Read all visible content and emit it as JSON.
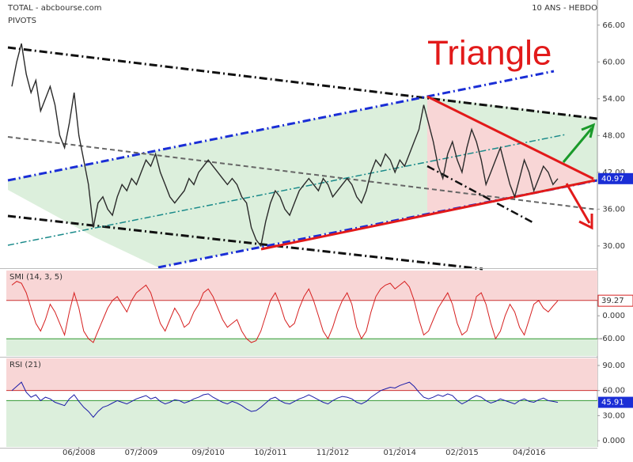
{
  "chart_data": [
    {
      "type": "line",
      "source": "TOTAL - abcbourse.com",
      "subtitle": "PIVOTS",
      "period": "10 ANS - HEBDO",
      "annotation": "Triangle",
      "categories": [
        null,
        null,
        null,
        null,
        null,
        null,
        null,
        null,
        null,
        null,
        null,
        null,
        null,
        null,
        "06/2008",
        null,
        null,
        null,
        null,
        null,
        null,
        null,
        null,
        null,
        null,
        null,
        null,
        "07/2009",
        null,
        null,
        null,
        null,
        null,
        null,
        null,
        null,
        null,
        null,
        null,
        null,
        null,
        "09/2010",
        null,
        null,
        null,
        null,
        null,
        null,
        null,
        null,
        null,
        null,
        null,
        null,
        "10/2011",
        null,
        null,
        null,
        null,
        null,
        null,
        null,
        null,
        null,
        null,
        null,
        null,
        "11/2012",
        null,
        null,
        null,
        null,
        null,
        null,
        null,
        null,
        null,
        null,
        null,
        null,
        null,
        "01/2014",
        null,
        null,
        null,
        null,
        null,
        null,
        null,
        null,
        null,
        null,
        null,
        null,
        "02/2015",
        null,
        null,
        null,
        null,
        null,
        null,
        null,
        null,
        null,
        null,
        null,
        null,
        null,
        "04/2016",
        null,
        null,
        null,
        null,
        null,
        null
      ],
      "series": [
        {
          "color": "#2a2a2a",
          "values": [
            56,
            60,
            63,
            58,
            55,
            57,
            52,
            54,
            56,
            53,
            48,
            46,
            50,
            55,
            48,
            44,
            40,
            33,
            37,
            38,
            36,
            35,
            38,
            40,
            39,
            41,
            40,
            42,
            44,
            43,
            45,
            42,
            40,
            38,
            37,
            38,
            39,
            41,
            40,
            42,
            43,
            44,
            43,
            42,
            41,
            40,
            41,
            40,
            38,
            37,
            33,
            31,
            30,
            34,
            37,
            39,
            38,
            36,
            35,
            37,
            39,
            40,
            41,
            40,
            39,
            41,
            40,
            38,
            39,
            40,
            41,
            40,
            38,
            37,
            39,
            42,
            44,
            43,
            45,
            44,
            42,
            44,
            43,
            45,
            47,
            49,
            53,
            50,
            47,
            43,
            41,
            45,
            47,
            44,
            42,
            46,
            49,
            47,
            44,
            40,
            42,
            44,
            46,
            43,
            40,
            38,
            41,
            44,
            42,
            39,
            41,
            43,
            42,
            40,
            40.97
          ]
        }
      ],
      "ylim": [
        26.5,
        70.1
      ],
      "yticks": [
        {
          "value": 66,
          "label": "66.00"
        },
        {
          "value": 60,
          "label": "60.00"
        },
        {
          "value": 54,
          "label": "54.00"
        },
        {
          "value": 48,
          "label": "48.00"
        },
        {
          "value": 42,
          "label": "42.00"
        },
        {
          "value": 36,
          "label": "36.00"
        },
        {
          "value": 30,
          "label": "30.00"
        }
      ]
    },
    {
      "type": "line",
      "title": "SMI (14, 3, 5)",
      "series": [
        {
          "color": "#d62020",
          "values": [
            80,
            90,
            85,
            60,
            20,
            -20,
            -40,
            -10,
            30,
            10,
            -20,
            -50,
            10,
            60,
            20,
            -40,
            -60,
            -70,
            -40,
            -10,
            20,
            40,
            50,
            30,
            10,
            40,
            60,
            70,
            80,
            60,
            20,
            -20,
            -40,
            -10,
            20,
            0,
            -30,
            -20,
            10,
            30,
            60,
            70,
            50,
            20,
            -10,
            -30,
            -20,
            -10,
            -40,
            -60,
            -70,
            -65,
            -40,
            0,
            40,
            60,
            30,
            -10,
            -30,
            -20,
            20,
            50,
            70,
            40,
            0,
            -40,
            -60,
            -30,
            10,
            40,
            60,
            30,
            -30,
            -60,
            -40,
            10,
            50,
            70,
            80,
            85,
            70,
            80,
            90,
            75,
            40,
            -10,
            -50,
            -40,
            -10,
            20,
            40,
            60,
            30,
            -20,
            -50,
            -40,
            0,
            50,
            60,
            30,
            -20,
            -60,
            -40,
            0,
            30,
            10,
            -30,
            -50,
            -10,
            30,
            40,
            20,
            10,
            25,
            39.27
          ]
        }
      ],
      "ylim": [
        -105,
        118
      ],
      "levels": [
        40,
        -60
      ],
      "yticks": [
        {
          "value": 0,
          "label": "0.000"
        },
        {
          "value": -60,
          "label": "-60.00"
        }
      ]
    },
    {
      "type": "line",
      "title": "RSI (21)",
      "series": [
        {
          "color": "#1c1ca8",
          "values": [
            60,
            65,
            70,
            58,
            52,
            55,
            48,
            52,
            50,
            46,
            44,
            42,
            50,
            55,
            47,
            40,
            35,
            28,
            35,
            40,
            42,
            45,
            48,
            46,
            44,
            47,
            50,
            52,
            54,
            50,
            52,
            47,
            44,
            46,
            49,
            48,
            45,
            47,
            50,
            52,
            55,
            56,
            52,
            49,
            46,
            44,
            47,
            45,
            42,
            38,
            35,
            36,
            40,
            45,
            50,
            52,
            48,
            45,
            44,
            47,
            50,
            52,
            55,
            52,
            49,
            46,
            44,
            48,
            51,
            53,
            52,
            50,
            46,
            44,
            47,
            52,
            56,
            60,
            62,
            64,
            63,
            66,
            68,
            70,
            65,
            58,
            52,
            50,
            52,
            55,
            53,
            56,
            54,
            48,
            44,
            47,
            51,
            54,
            52,
            48,
            45,
            47,
            50,
            48,
            46,
            44,
            48,
            50,
            47,
            46,
            49,
            51,
            48,
            47,
            45.91
          ]
        }
      ],
      "ylim": [
        -7.5,
        98.5
      ],
      "levels": [
        60,
        48
      ],
      "yticks": [
        {
          "value": 90,
          "label": "90.00"
        },
        {
          "value": 60,
          "label": "60.00"
        },
        {
          "value": 30,
          "label": "30.00"
        },
        {
          "value": 0,
          "label": "0.000"
        }
      ]
    }
  ]
}
